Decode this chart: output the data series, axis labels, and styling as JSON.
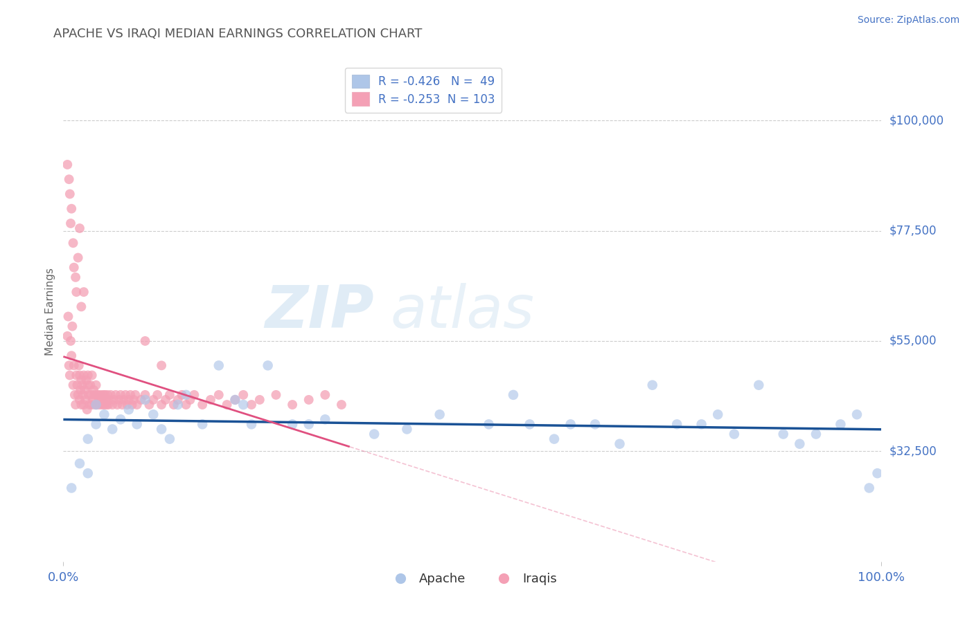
{
  "title": "APACHE VS IRAQI MEDIAN EARNINGS CORRELATION CHART",
  "source_text": "Source: ZipAtlas.com",
  "ylabel": "Median Earnings",
  "x_min": 0.0,
  "x_max": 1.0,
  "y_min": 10000,
  "y_max": 112000,
  "yticks": [
    32500,
    55000,
    77500,
    100000
  ],
  "ytick_labels": [
    "$32,500",
    "$55,000",
    "$77,500",
    "$100,000"
  ],
  "xtick_labels": [
    "0.0%",
    "100.0%"
  ],
  "legend_r_apache": "R = -0.426",
  "legend_n_apache": "N =  49",
  "legend_r_iraqis": "R = -0.253",
  "legend_n_iraqis": "N = 103",
  "apache_color": "#aec6e8",
  "apache_line_color": "#1a5296",
  "iraqis_color": "#f4a0b5",
  "iraqis_line_color": "#e05080",
  "title_color": "#555555",
  "axis_label_color": "#666666",
  "tick_color": "#4472c4",
  "grid_color": "#cccccc",
  "background_color": "#ffffff",
  "apache_scatter_x": [
    0.01,
    0.02,
    0.03,
    0.03,
    0.04,
    0.04,
    0.05,
    0.06,
    0.07,
    0.08,
    0.09,
    0.1,
    0.11,
    0.12,
    0.13,
    0.14,
    0.15,
    0.17,
    0.19,
    0.21,
    0.22,
    0.23,
    0.25,
    0.28,
    0.3,
    0.32,
    0.38,
    0.42,
    0.46,
    0.52,
    0.55,
    0.57,
    0.6,
    0.62,
    0.65,
    0.68,
    0.72,
    0.75,
    0.78,
    0.8,
    0.82,
    0.85,
    0.88,
    0.9,
    0.92,
    0.95,
    0.97,
    0.985,
    0.995
  ],
  "apache_scatter_y": [
    25000,
    30000,
    35000,
    28000,
    38000,
    42000,
    40000,
    37000,
    39000,
    41000,
    38000,
    43000,
    40000,
    37000,
    35000,
    42000,
    44000,
    38000,
    50000,
    43000,
    42000,
    38000,
    50000,
    38000,
    38000,
    39000,
    36000,
    37000,
    40000,
    38000,
    44000,
    38000,
    35000,
    38000,
    38000,
    34000,
    46000,
    38000,
    38000,
    40000,
    36000,
    46000,
    36000,
    34000,
    36000,
    38000,
    40000,
    25000,
    28000
  ],
  "iraqis_scatter_x": [
    0.005,
    0.006,
    0.007,
    0.008,
    0.009,
    0.01,
    0.011,
    0.012,
    0.013,
    0.014,
    0.015,
    0.016,
    0.017,
    0.018,
    0.019,
    0.02,
    0.02,
    0.021,
    0.022,
    0.022,
    0.023,
    0.024,
    0.025,
    0.025,
    0.026,
    0.027,
    0.028,
    0.029,
    0.03,
    0.03,
    0.031,
    0.032,
    0.033,
    0.034,
    0.035,
    0.035,
    0.036,
    0.037,
    0.038,
    0.039,
    0.04,
    0.041,
    0.042,
    0.043,
    0.044,
    0.045,
    0.046,
    0.047,
    0.048,
    0.049,
    0.05,
    0.051,
    0.052,
    0.053,
    0.054,
    0.055,
    0.056,
    0.058,
    0.06,
    0.062,
    0.064,
    0.066,
    0.068,
    0.07,
    0.072,
    0.074,
    0.076,
    0.078,
    0.08,
    0.082,
    0.084,
    0.086,
    0.088,
    0.09,
    0.095,
    0.1,
    0.105,
    0.11,
    0.115,
    0.12,
    0.125,
    0.13,
    0.135,
    0.14,
    0.145,
    0.15,
    0.155,
    0.16,
    0.17,
    0.18,
    0.19,
    0.2,
    0.21,
    0.22,
    0.23,
    0.24,
    0.26,
    0.28,
    0.3,
    0.32,
    0.34,
    0.1,
    0.12
  ],
  "iraqis_scatter_y": [
    56000,
    60000,
    50000,
    48000,
    55000,
    52000,
    58000,
    46000,
    50000,
    44000,
    42000,
    48000,
    46000,
    44000,
    50000,
    43000,
    48000,
    45000,
    47000,
    42000,
    46000,
    44000,
    48000,
    42000,
    45000,
    43000,
    47000,
    41000,
    46000,
    48000,
    44000,
    42000,
    46000,
    44000,
    42000,
    48000,
    43000,
    45000,
    44000,
    42000,
    46000,
    44000,
    42000,
    44000,
    43000,
    42000,
    44000,
    43000,
    42000,
    44000,
    42000,
    44000,
    43000,
    42000,
    44000,
    42000,
    43000,
    44000,
    42000,
    43000,
    44000,
    42000,
    43000,
    44000,
    42000,
    43000,
    44000,
    42000,
    43000,
    44000,
    42000,
    43000,
    44000,
    42000,
    43000,
    44000,
    42000,
    43000,
    44000,
    42000,
    43000,
    44000,
    42000,
    43000,
    44000,
    42000,
    43000,
    44000,
    42000,
    43000,
    44000,
    42000,
    43000,
    44000,
    42000,
    43000,
    44000,
    42000,
    43000,
    44000,
    42000,
    55000,
    50000
  ],
  "iraqis_high_x": [
    0.005,
    0.007,
    0.008,
    0.009,
    0.01,
    0.012,
    0.013,
    0.015,
    0.016,
    0.018,
    0.02,
    0.022,
    0.025
  ],
  "iraqis_high_y": [
    91000,
    88000,
    85000,
    79000,
    82000,
    75000,
    70000,
    68000,
    65000,
    72000,
    78000,
    62000,
    65000
  ]
}
